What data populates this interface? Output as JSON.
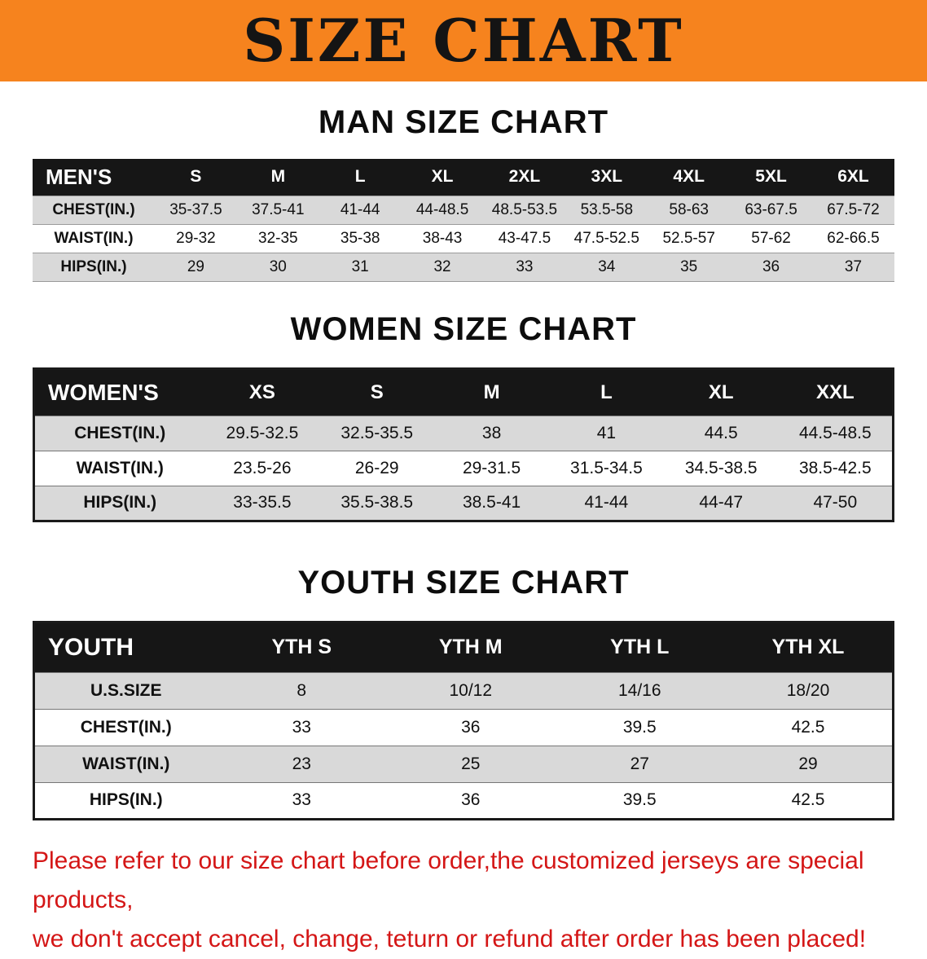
{
  "banner": {
    "title": "SIZE CHART"
  },
  "colors": {
    "banner_bg": "#f6831e",
    "header_bg": "#161616",
    "row_alt": "#d9d9d9",
    "disclaimer_color": "#d41616"
  },
  "men": {
    "heading": "MAN SIZE CHART",
    "label": "MEN'S",
    "sizes": [
      "S",
      "M",
      "L",
      "XL",
      "2XL",
      "3XL",
      "4XL",
      "5XL",
      "6XL"
    ],
    "rows": [
      {
        "label": "CHEST(IN.)",
        "values": [
          "35-37.5",
          "37.5-41",
          "41-44",
          "44-48.5",
          "48.5-53.5",
          "53.5-58",
          "58-63",
          "63-67.5",
          "67.5-72"
        ]
      },
      {
        "label": "WAIST(IN.)",
        "values": [
          "29-32",
          "32-35",
          "35-38",
          "38-43",
          "43-47.5",
          "47.5-52.5",
          "52.5-57",
          "57-62",
          "62-66.5"
        ]
      },
      {
        "label": "HIPS(IN.)",
        "values": [
          "29",
          "30",
          "31",
          "32",
          "33",
          "34",
          "35",
          "36",
          "37"
        ]
      }
    ]
  },
  "women": {
    "heading": "WOMEN SIZE CHART",
    "label": "WOMEN'S",
    "sizes": [
      "XS",
      "S",
      "M",
      "L",
      "XL",
      "XXL"
    ],
    "rows": [
      {
        "label": "CHEST(IN.)",
        "values": [
          "29.5-32.5",
          "32.5-35.5",
          "38",
          "41",
          "44.5",
          "44.5-48.5"
        ]
      },
      {
        "label": "WAIST(IN.)",
        "values": [
          "23.5-26",
          "26-29",
          "29-31.5",
          "31.5-34.5",
          "34.5-38.5",
          "38.5-42.5"
        ]
      },
      {
        "label": "HIPS(IN.)",
        "values": [
          "33-35.5",
          "35.5-38.5",
          "38.5-41",
          "41-44",
          "44-47",
          "47-50"
        ]
      }
    ]
  },
  "youth": {
    "heading": "YOUTH SIZE CHART",
    "label": "YOUTH",
    "sizes": [
      "YTH S",
      "YTH M",
      "YTH L",
      "YTH XL"
    ],
    "rows": [
      {
        "label": "U.S.SIZE",
        "values": [
          "8",
          "10/12",
          "14/16",
          "18/20"
        ]
      },
      {
        "label": "CHEST(IN.)",
        "values": [
          "33",
          "36",
          "39.5",
          "42.5"
        ]
      },
      {
        "label": "WAIST(IN.)",
        "values": [
          "23",
          "25",
          "27",
          "29"
        ]
      },
      {
        "label": "HIPS(IN.)",
        "values": [
          "33",
          "36",
          "39.5",
          "42.5"
        ]
      }
    ]
  },
  "disclaimer": {
    "line1": "Please refer to our size chart before order,the customized jerseys are special products,",
    "line2": "we don't accept cancel, change, teturn or refund after order has been placed!"
  }
}
